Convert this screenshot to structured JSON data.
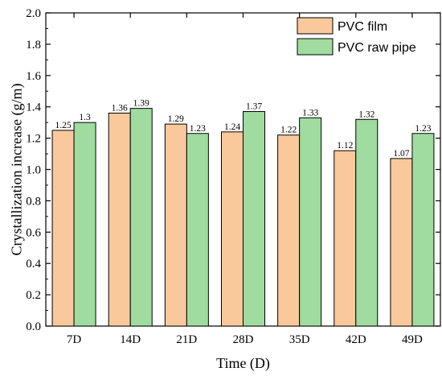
{
  "chart_data": {
    "type": "bar",
    "xlabel": "Time (D)",
    "ylabel": "Crystallization increase (g/m)",
    "ylim": [
      0,
      2.0
    ],
    "yticks": [
      "0.0",
      "0.2",
      "0.4",
      "0.6",
      "0.8",
      "1.0",
      "1.2",
      "1.4",
      "1.6",
      "1.8",
      "2.0"
    ],
    "categories": [
      "7D",
      "14D",
      "21D",
      "28D",
      "35D",
      "42D",
      "49D"
    ],
    "series": [
      {
        "name": "PVC film",
        "color": "#F9C99B",
        "values": [
          1.25,
          1.36,
          1.29,
          1.24,
          1.22,
          1.12,
          1.07
        ],
        "labels": [
          "1.25",
          "1.36",
          "1.29",
          "1.24",
          "1.22",
          "1.12",
          "1.07"
        ]
      },
      {
        "name": "PVC raw pipe",
        "color": "#A0DBA0",
        "values": [
          1.3,
          1.39,
          1.23,
          1.37,
          1.33,
          1.32,
          1.23
        ],
        "labels": [
          "1.3",
          "1.39",
          "1.23",
          "1.37",
          "1.33",
          "1.32",
          "1.23"
        ]
      }
    ],
    "legend_position": "top-right",
    "grid": false
  }
}
